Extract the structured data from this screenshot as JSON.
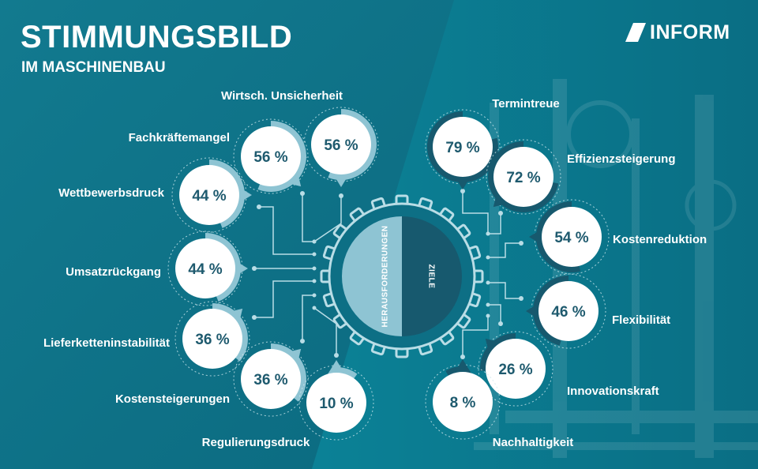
{
  "header": {
    "title": "STIMMUNGSBILD",
    "subtitle": "IM MASCHINENBAU",
    "brand": "INFORM"
  },
  "colors": {
    "left_accent": "#8ec4d3",
    "right_accent": "#17596e",
    "bubble_fill": "#ffffff",
    "value_text": "#1e5a6e",
    "connector": "#b9dde6"
  },
  "chart_data": {
    "type": "radial-bubble",
    "title": "STIMMUNGSBILD",
    "subtitle": "IM MASCHINENBAU",
    "unit": "%",
    "groups": [
      {
        "name": "HERAUSFORDERUNGEN",
        "side": "left",
        "items": [
          {
            "label": "Wirtsch. Unsicherheit",
            "value": 56
          },
          {
            "label": "Fachkräftemangel",
            "value": 56
          },
          {
            "label": "Wettbewerbsdruck",
            "value": 44
          },
          {
            "label": "Umsatzrückgang",
            "value": 44
          },
          {
            "label": "Lieferketteninstabilität",
            "value": 36
          },
          {
            "label": "Kostensteigerungen",
            "value": 36
          },
          {
            "label": "Regulierungsdruck",
            "value": 10
          }
        ]
      },
      {
        "name": "ZIELE",
        "side": "right",
        "items": [
          {
            "label": "Termintreue",
            "value": 79
          },
          {
            "label": "Effizienzsteigerung",
            "value": 72
          },
          {
            "label": "Kostenreduktion",
            "value": 54
          },
          {
            "label": "Flexibilität",
            "value": 46
          },
          {
            "label": "Innovationskraft",
            "value": 26
          },
          {
            "label": "Nachhaltigkeit",
            "value": 8
          }
        ]
      }
    ]
  }
}
